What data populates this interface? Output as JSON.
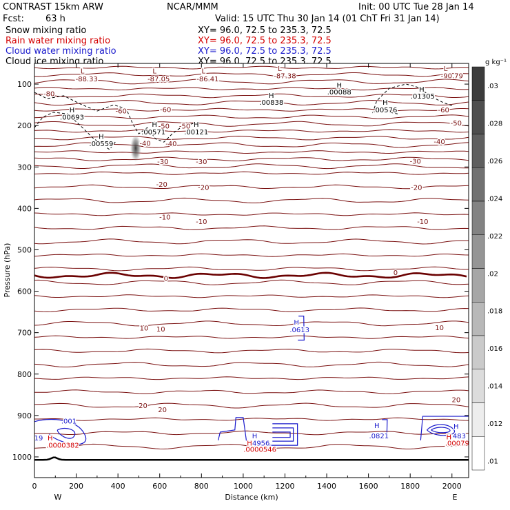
{
  "header": {
    "model": "CONTRAST 15km ARW",
    "org": "NCAR/MMM",
    "init": "Init: 00 UTC Tue 28 Jan 14",
    "fcst_label": "Fcst:",
    "fcst_value": "63 h",
    "valid": "Valid: 15 UTC Thu 30 Jan 14 (01 ChT Fri 31 Jan 14)"
  },
  "fields": [
    {
      "name": "Snow mixing ratio",
      "xy": "XY=  96.0, 72.5 to 235.3, 72.5",
      "color": "#000000"
    },
    {
      "name": "Rain water mixing ratio",
      "xy": "XY=  96.0, 72.5 to 235.3, 72.5",
      "color": "#d40000"
    },
    {
      "name": "Cloud water mixing ratio",
      "xy": "XY=  96.0, 72.5 to 235.3, 72.5",
      "color": "#1a1acc"
    },
    {
      "name": "Cloud ice mixing ratio",
      "xy": "XY=  96.0, 72.5 to 235.3, 72.5",
      "color": "#000000"
    }
  ],
  "colors": {
    "temperature": "#7a1010",
    "zero_isotherm": "#6a0000",
    "terrain": "#000000",
    "rain": "#d40000",
    "cloud_water": "#1a1acc",
    "cloud_ice": "#000000"
  },
  "chart_data": {
    "type": "contour-cross-section",
    "xlabel": "Distance (km)",
    "ylabel": "Pressure (hPa)",
    "xlim": [
      0,
      2080
    ],
    "ylim": [
      1050,
      50
    ],
    "x_ticks": [
      0,
      200,
      400,
      600,
      800,
      1000,
      1200,
      1400,
      1600,
      1800,
      2000
    ],
    "y_ticks": [
      100,
      200,
      300,
      400,
      500,
      600,
      700,
      800,
      900,
      1000
    ],
    "x_end_labels": {
      "west": "W",
      "east": "E"
    },
    "colorbar": {
      "units": "g kg⁻¹",
      "ticks": [
        ".03",
        ".028",
        ".026",
        ".024",
        ".022",
        ".02",
        ".018",
        ".016",
        ".014",
        ".012",
        ".01"
      ],
      "values": [
        0.03,
        0.028,
        0.026,
        0.024,
        0.022,
        0.02,
        0.018,
        0.016,
        0.014,
        0.012,
        0.01
      ]
    },
    "temperature_labels": [
      {
        "text": "-80",
        "x": 70,
        "p": 129
      },
      {
        "text": "-60",
        "x": 415,
        "p": 171
      },
      {
        "text": "-60",
        "x": 628,
        "p": 167
      },
      {
        "text": "-60",
        "x": 1960,
        "p": 168
      },
      {
        "text": "-50",
        "x": 620,
        "p": 207
      },
      {
        "text": "-50",
        "x": 720,
        "p": 207
      },
      {
        "text": "-50",
        "x": 2020,
        "p": 200
      },
      {
        "text": "-40",
        "x": 530,
        "p": 249
      },
      {
        "text": "-40",
        "x": 655,
        "p": 250
      },
      {
        "text": "-40",
        "x": 1940,
        "p": 245
      },
      {
        "text": "-30",
        "x": 615,
        "p": 293
      },
      {
        "text": "-30",
        "x": 800,
        "p": 293
      },
      {
        "text": "-30",
        "x": 1825,
        "p": 292
      },
      {
        "text": "-20",
        "x": 610,
        "p": 348
      },
      {
        "text": "-20",
        "x": 810,
        "p": 355
      },
      {
        "text": "-20",
        "x": 1830,
        "p": 355
      },
      {
        "text": "-10",
        "x": 625,
        "p": 427
      },
      {
        "text": "-10",
        "x": 800,
        "p": 438
      },
      {
        "text": "-10",
        "x": 1860,
        "p": 438
      },
      {
        "text": "0",
        "x": 630,
        "p": 575
      },
      {
        "text": "0",
        "x": 1730,
        "p": 561
      },
      {
        "text": "10",
        "x": 525,
        "p": 695
      },
      {
        "text": "10",
        "x": 605,
        "p": 697
      },
      {
        "text": "10",
        "x": 1940,
        "p": 694
      },
      {
        "text": "20",
        "x": 520,
        "p": 882
      },
      {
        "text": "20",
        "x": 613,
        "p": 892
      },
      {
        "text": "20",
        "x": 2020,
        "p": 868
      }
    ],
    "snow_labels": [
      {
        "text": "L",
        "x": 230,
        "p": 74
      },
      {
        "text": "-88.33",
        "x": 250,
        "p": 93
      },
      {
        "text": "L",
        "x": 575,
        "p": 74
      },
      {
        "text": "-87.05",
        "x": 595,
        "p": 93
      },
      {
        "text": "L",
        "x": 810,
        "p": 74
      },
      {
        "text": "-86.41",
        "x": 830,
        "p": 93
      },
      {
        "text": "L",
        "x": 1175,
        "p": 68
      },
      {
        "text": "-87.38",
        "x": 1200,
        "p": 86
      },
      {
        "text": "L",
        "x": 1970,
        "p": 68
      },
      {
        "text": "-90.79",
        "x": 2000,
        "p": 86
      }
    ],
    "ice_labels": [
      {
        "text": "H",
        "x": 180,
        "p": 168
      },
      {
        "text": ".00693",
        "x": 180,
        "p": 186
      },
      {
        "text": "H",
        "x": 320,
        "p": 232
      },
      {
        "text": ".00559",
        "x": 320,
        "p": 250
      },
      {
        "text": "H",
        "x": 575,
        "p": 203
      },
      {
        "text": ".00571",
        "x": 570,
        "p": 221
      },
      {
        "text": "H",
        "x": 775,
        "p": 203
      },
      {
        "text": ".00121",
        "x": 775,
        "p": 221
      },
      {
        "text": "H",
        "x": 1135,
        "p": 133
      },
      {
        "text": ".00838",
        "x": 1135,
        "p": 150
      },
      {
        "text": "H",
        "x": 1460,
        "p": 108
      },
      {
        "text": ".00088",
        "x": 1460,
        "p": 125
      },
      {
        "text": "H",
        "x": 1680,
        "p": 150
      },
      {
        "text": ".00576",
        "x": 1680,
        "p": 168
      },
      {
        "text": "H",
        "x": 1855,
        "p": 118
      },
      {
        "text": ".01305",
        "x": 1860,
        "p": 135
      }
    ],
    "cloud_water_labels": [
      {
        "text": ".001",
        "x": 165,
        "p": 919
      },
      {
        "text": "19",
        "x": 20,
        "p": 960
      },
      {
        "text": "H",
        "x": 1055,
        "p": 955
      },
      {
        "text": ".4956",
        "x": 1080,
        "p": 973
      },
      {
        "text": "H",
        "x": 1255,
        "p": 681
      },
      {
        "text": ".0613",
        "x": 1270,
        "p": 699
      },
      {
        "text": "H",
        "x": 1640,
        "p": 930
      },
      {
        "text": ".0821",
        "x": 1650,
        "p": 955
      },
      {
        "text": "H",
        "x": 2020,
        "p": 932
      },
      {
        "text": ".483",
        "x": 2030,
        "p": 955
      }
    ],
    "rain_labels": [
      {
        "text": "H",
        "x": 75,
        "p": 960
      },
      {
        "text": ".0000382",
        "x": 135,
        "p": 978
      },
      {
        "text": "H",
        "x": 1030,
        "p": 973
      },
      {
        "text": ".0000546",
        "x": 1080,
        "p": 988
      },
      {
        "text": "H",
        "x": 1985,
        "p": 958
      },
      {
        "text": ".00079",
        "x": 2025,
        "p": 973
      }
    ]
  }
}
